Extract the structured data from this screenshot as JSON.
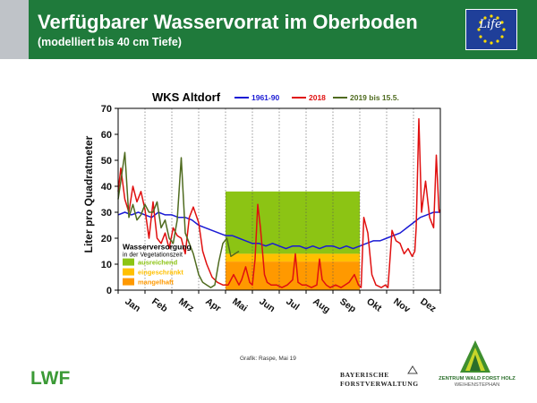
{
  "header": {
    "title": "Verfügbarer Wasservorrat im Oberboden",
    "subtitle": "(modelliert bis 40 cm Tiefe)",
    "life_logo_text": "Life"
  },
  "colors": {
    "header_green": "#1f7a3b",
    "series_1961": "#1a1ad4",
    "series_2018": "#e01010",
    "series_2019": "#4f6b1f",
    "band_ausreichend": "#8cc414",
    "band_eingeschraenkt": "#ffc000",
    "band_mangelhaft": "#ff9900"
  },
  "chart_data": {
    "type": "line",
    "title": "WKS Altdorf",
    "ylabel": "Liter pro Quadratmeter",
    "xlabel": "",
    "ylim": [
      0,
      70
    ],
    "yticks": [
      0,
      10,
      20,
      30,
      40,
      50,
      60,
      70
    ],
    "x_unit": "month",
    "xlim": [
      0,
      12
    ],
    "categories": [
      "Jan",
      "Feb",
      "Mrz",
      "Apr",
      "Mai",
      "Jun",
      "Jul",
      "Aug",
      "Sep",
      "Okt",
      "Nov",
      "Dez"
    ],
    "grid": "vertical dotted month lines",
    "legend_position": "top",
    "series": [
      {
        "name": "1961-90",
        "color": "#1a1ad4",
        "x": [
          0,
          0.25,
          0.5,
          0.75,
          1,
          1.25,
          1.5,
          1.75,
          2,
          2.25,
          2.5,
          2.75,
          3,
          3.25,
          3.5,
          3.75,
          4,
          4.25,
          4.5,
          4.75,
          5,
          5.25,
          5.5,
          5.75,
          6,
          6.25,
          6.5,
          6.75,
          7,
          7.25,
          7.5,
          7.75,
          8,
          8.25,
          8.5,
          8.75,
          9,
          9.25,
          9.5,
          9.75,
          10,
          10.25,
          10.5,
          10.75,
          11,
          11.25,
          11.5,
          11.75,
          12
        ],
        "y": [
          29,
          30,
          29,
          30,
          29,
          28,
          30,
          29,
          29,
          28,
          28,
          27,
          25,
          24,
          23,
          22,
          21,
          21,
          20,
          19,
          18,
          18,
          17,
          18,
          17,
          16,
          17,
          17,
          16,
          17,
          16,
          17,
          17,
          16,
          17,
          16,
          17,
          18,
          19,
          19,
          20,
          21,
          22,
          24,
          26,
          28,
          29,
          30,
          30
        ]
      },
      {
        "name": "2018",
        "color": "#e01010",
        "x": [
          0,
          0.1,
          0.25,
          0.4,
          0.55,
          0.7,
          0.85,
          1,
          1.15,
          1.3,
          1.45,
          1.6,
          1.75,
          1.9,
          2.05,
          2.2,
          2.35,
          2.5,
          2.65,
          2.8,
          3,
          3.15,
          3.3,
          3.5,
          3.7,
          3.9,
          4.1,
          4.3,
          4.5,
          4.6,
          4.75,
          4.9,
          5,
          5.1,
          5.2,
          5.3,
          5.45,
          5.55,
          5.7,
          5.9,
          6.1,
          6.3,
          6.5,
          6.6,
          6.7,
          6.85,
          7,
          7.2,
          7.4,
          7.5,
          7.6,
          7.75,
          7.9,
          8.1,
          8.3,
          8.45,
          8.6,
          8.8,
          8.95,
          9.05,
          9.15,
          9.3,
          9.45,
          9.6,
          9.8,
          9.95,
          10.05,
          10.2,
          10.35,
          10.5,
          10.65,
          10.8,
          10.95,
          11.05,
          11.1,
          11.2,
          11.3,
          11.45,
          11.6,
          11.75,
          11.85,
          11.95,
          12
        ],
        "y": [
          38,
          47,
          35,
          30,
          40,
          34,
          38,
          31,
          20,
          34,
          20,
          18,
          22,
          16,
          24,
          21,
          20,
          14,
          28,
          32,
          26,
          15,
          10,
          5,
          3,
          2,
          2,
          6,
          2,
          4,
          9,
          3,
          2,
          12,
          33,
          24,
          6,
          3,
          2,
          2,
          1,
          2,
          4,
          14,
          3,
          2,
          2,
          1,
          2,
          12,
          4,
          2,
          1,
          2,
          1,
          2,
          3,
          6,
          2,
          1,
          28,
          22,
          6,
          2,
          1,
          2,
          1,
          23,
          19,
          18,
          14,
          16,
          13,
          15,
          24,
          66,
          30,
          42,
          28,
          24,
          52,
          30,
          31
        ]
      },
      {
        "name": "2019 bis 15.5.",
        "color": "#4f6b1f",
        "x": [
          0,
          0.1,
          0.25,
          0.4,
          0.55,
          0.7,
          0.85,
          1,
          1.15,
          1.3,
          1.45,
          1.6,
          1.75,
          1.9,
          2.05,
          2.2,
          2.35,
          2.5,
          2.65,
          2.8,
          3,
          3.15,
          3.3,
          3.45,
          3.6,
          3.75,
          3.9,
          4.05,
          4.2,
          4.35,
          4.5
        ],
        "y": [
          35,
          42,
          53,
          28,
          33,
          27,
          29,
          33,
          30,
          30,
          34,
          24,
          27,
          20,
          18,
          27,
          51,
          22,
          18,
          14,
          6,
          3,
          2,
          1,
          2,
          11,
          18,
          20,
          13,
          14,
          15
        ]
      }
    ],
    "zones": {
      "title": "Wasserversorgung",
      "subtitle": "in der Vegetationszeit",
      "x_range": [
        4,
        9
      ],
      "bands": [
        {
          "label": "ausreichend",
          "from": 14,
          "to": 38,
          "color": "#8cc414"
        },
        {
          "label": "eingeschränkt",
          "from": 11,
          "to": 14,
          "color": "#ffc000"
        },
        {
          "label": "mangelhaft",
          "from": 0,
          "to": 11,
          "color": "#ff9900"
        }
      ]
    }
  },
  "footer": {
    "credit": "Grafik: Raspe, Mai 19",
    "lwf_logo": "LWF",
    "bayerische_line1": "BAYERISCHE",
    "bayerische_line2": "FORSTVERWALTUNG",
    "zentrum_line1": "ZENTRUM WALD FORST HOLZ",
    "zentrum_line2": "WEIHENSTEPHAN"
  }
}
